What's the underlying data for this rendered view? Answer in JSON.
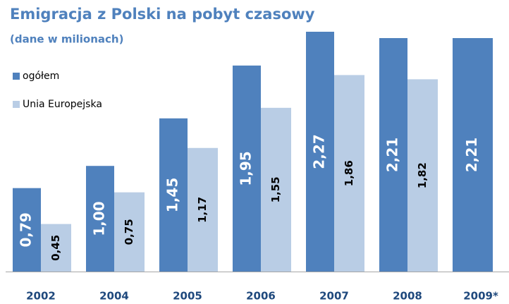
{
  "chart_data": {
    "type": "bar",
    "title": "Emigracja z Polski na pobyt czasowy",
    "subtitle": "(dane w milionach)",
    "categories": [
      "2002",
      "2004",
      "2005",
      "2006",
      "2007",
      "2008",
      "2009*"
    ],
    "series": [
      {
        "name": "ogółem",
        "color": "#4f81bd",
        "values": [
          0.79,
          1.0,
          1.45,
          1.95,
          2.27,
          2.21,
          2.21
        ],
        "value_labels": [
          "0,79",
          "1,00",
          "1,45",
          "1,95",
          "2,27",
          "2,21",
          "2,21"
        ]
      },
      {
        "name": "Unia Europejska",
        "color": "#b9cde5",
        "values": [
          0.45,
          0.75,
          1.17,
          1.55,
          1.86,
          1.82,
          null
        ],
        "value_labels": [
          "0,45",
          "0,75",
          "1,17",
          "1,55",
          "1,86",
          "1,82",
          null
        ]
      }
    ],
    "legend": "upper left"
  }
}
